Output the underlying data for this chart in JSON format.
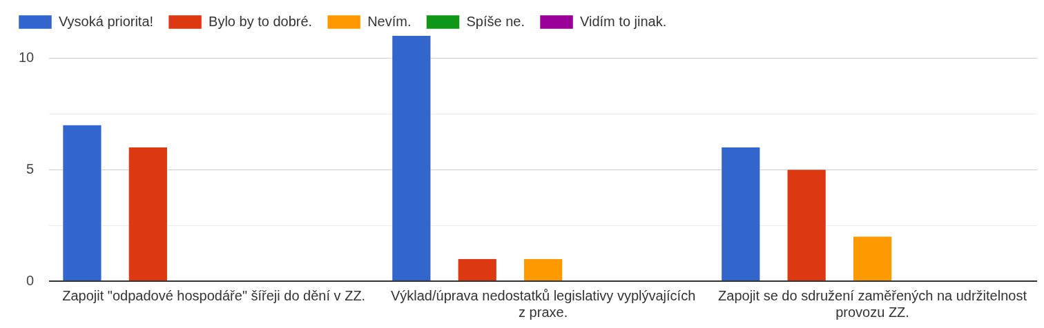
{
  "chart_data": {
    "type": "bar",
    "categories": [
      "Zapojit \"odpadové hospodáře\" šířeji do dění v ZZ.",
      "Výklad/úprava nedostatků legislativy vyplývajících z praxe.",
      "Zapojit se do sdružení zaměřených na udržitelnost provozu ZZ."
    ],
    "series": [
      {
        "name": "Vysoká priorita!",
        "color": "#3366cc",
        "values": [
          7,
          11,
          6
        ]
      },
      {
        "name": "Bylo by to dobré.",
        "color": "#dc3912",
        "values": [
          6,
          1,
          5
        ]
      },
      {
        "name": "Nevím.",
        "color": "#ff9900",
        "values": [
          0,
          1,
          2
        ]
      },
      {
        "name": "Spíše ne.",
        "color": "#109618",
        "values": [
          0,
          0,
          0
        ]
      },
      {
        "name": "Vidím to jinak.",
        "color": "#990099",
        "values": [
          0,
          0,
          0
        ]
      }
    ],
    "ylim": [
      0,
      11
    ],
    "yticks": [
      0,
      {
        "value": 2.5,
        "label": null
      },
      5,
      {
        "value": 7.5,
        "label": null
      },
      10
    ],
    "grid": "y",
    "legend": "top left"
  }
}
